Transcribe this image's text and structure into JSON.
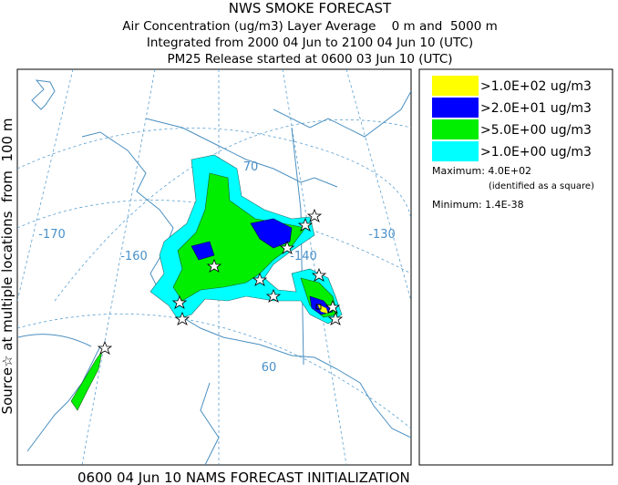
{
  "header": {
    "title": "NWS SMOKE FORECAST",
    "lines": [
      "Air Concentration (ug/m3) Layer Average    0 m and  5000 m",
      "Integrated from 2000 04 Jun to 2100 04 Jun 10 (UTC)",
      "PM25 Release started at 0600 03 Jun 10 (UTC)"
    ]
  },
  "side_label": "Source☆ at multiple locations  from  100 m",
  "footer": "0600 04 Jun 10 NAMS FORECAST INITIALIZATION",
  "map": {
    "labels": [
      "70",
      "-170",
      "-160",
      "-140",
      "-130",
      "60"
    ]
  },
  "legend": {
    "items": [
      {
        "label": ">1.0E+02 ug/m3",
        "color": "#ffff00"
      },
      {
        "label": ">2.0E+01 ug/m3",
        "color": "#0000ff"
      },
      {
        "label": ">5.0E+00 ug/m3",
        "color": "#00ee00"
      },
      {
        "label": ">1.0E+00 ug/m3",
        "color": "#00ffff"
      }
    ],
    "maximum": "Maximum: 4.0E+02",
    "maximum_note": "(identified as a square)",
    "minimum": "Minimum: 1.4E-38"
  }
}
